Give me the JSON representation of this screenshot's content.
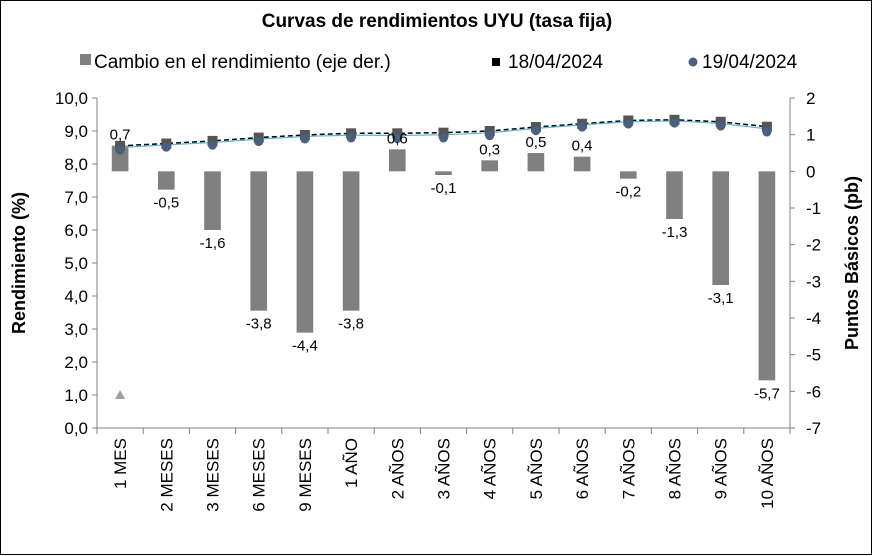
{
  "chart_data": {
    "type": "bar+line",
    "title": "Curvas de rendimientos UYU (tasa fija)",
    "categories": [
      "1 MES",
      "2 MESES",
      "3 MESES",
      "6 MESES",
      "9 MESES",
      "1 AÑO",
      "2 AÑOS",
      "3 AÑOS",
      "4 AÑOS",
      "5 AÑOS",
      "6 AÑOS",
      "7 AÑOS",
      "8 AÑOS",
      "9 AÑOS",
      "10 AÑOS"
    ],
    "series": [
      {
        "name": "Cambio en el rendimiento (eje der.)",
        "type": "bar",
        "axis": "right",
        "color": "#808080",
        "values": [
          0.7,
          -0.5,
          -1.6,
          -3.8,
          -4.4,
          -3.8,
          0.6,
          -0.1,
          0.3,
          0.5,
          0.4,
          -0.2,
          -1.3,
          -3.1,
          -5.7
        ],
        "labels": [
          "0,7",
          "-0,5",
          "-1,6",
          "-3,8",
          "-4,4",
          "-3,8",
          "0,6",
          "-0,1",
          "0,3",
          "0,5",
          "0,4",
          "-0,2",
          "-1,3",
          "-3,1",
          "-5,7"
        ]
      },
      {
        "name": "18/04/2024",
        "type": "line",
        "axis": "left",
        "color": "#000000",
        "marker": "square",
        "values": [
          8.55,
          8.62,
          8.7,
          8.8,
          8.88,
          8.93,
          8.93,
          8.95,
          9.0,
          9.12,
          9.22,
          9.32,
          9.34,
          9.28,
          9.13
        ]
      },
      {
        "name": "19/04/2024",
        "type": "line",
        "axis": "left",
        "color": "#4a6080",
        "marker": "circle",
        "values": [
          8.51,
          8.6,
          8.66,
          8.77,
          8.85,
          8.88,
          8.86,
          8.88,
          8.95,
          9.1,
          9.21,
          9.3,
          9.33,
          9.24,
          9.06
        ]
      }
    ],
    "y_left": {
      "label": "Rendimiento (%)",
      "range": [
        0,
        10
      ],
      "ticks": [
        "0,0",
        "1,0",
        "2,0",
        "3,0",
        "4,0",
        "5,0",
        "6,0",
        "7,0",
        "8,0",
        "9,0",
        "10,0"
      ]
    },
    "y_right": {
      "label": "Puntos Básicos (pb)",
      "range": [
        -7,
        2
      ],
      "ticks": [
        "-7",
        "-6",
        "-5",
        "-4",
        "-3",
        "-2",
        "-1",
        "0",
        "1",
        "2"
      ]
    },
    "fit_line_color": "#5fb8d8",
    "marker_triangle": {
      "category": "1 MES",
      "value": 1.0,
      "color": "#a0a0a0"
    },
    "legend_position": "top",
    "grid": false
  }
}
